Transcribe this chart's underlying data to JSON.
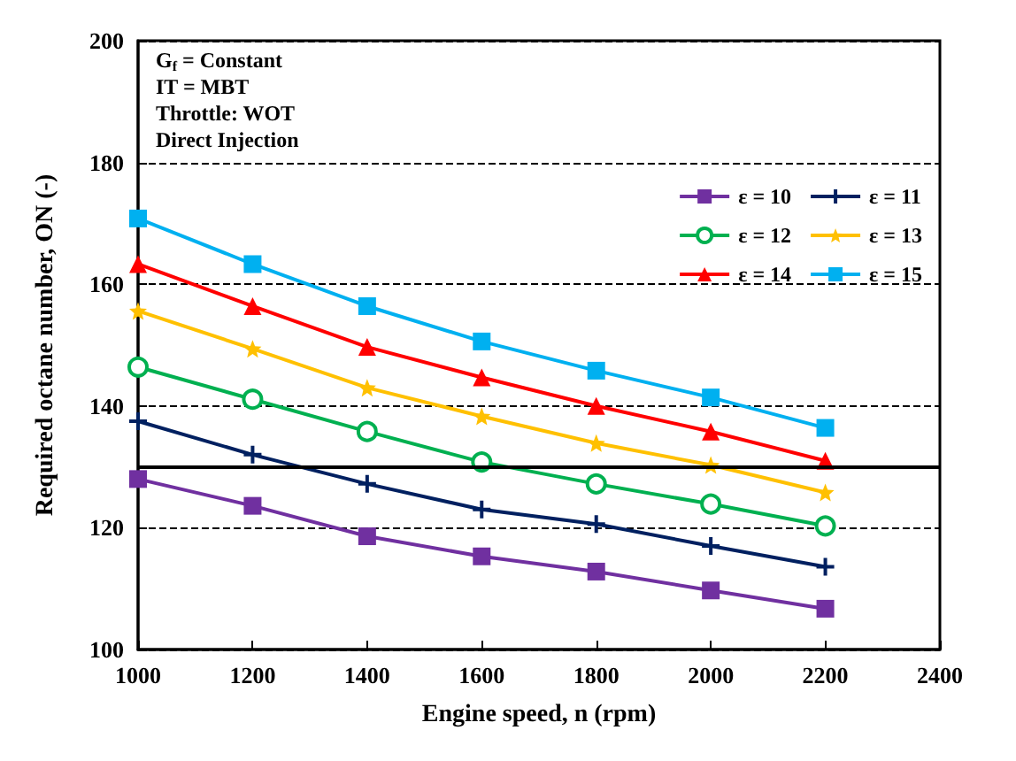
{
  "chart_data": {
    "type": "line",
    "xlabel": "Engine speed, n (rpm)",
    "ylabel": "Required octane number, ON (-)",
    "x": [
      1000,
      1200,
      1400,
      1600,
      1800,
      2000,
      2200
    ],
    "series": [
      {
        "name": "ε = 10",
        "color": "#7030a0",
        "marker": "square",
        "values": [
          128,
          123.6,
          118.6,
          115.3,
          112.8,
          109.7,
          106.7
        ]
      },
      {
        "name": "ε = 11",
        "color": "#002060",
        "marker": "cross",
        "values": [
          137.5,
          132,
          127.2,
          123,
          120.6,
          117,
          113.6
        ]
      },
      {
        "name": "ε = 12",
        "color": "#00b050",
        "marker": "circle",
        "values": [
          146.4,
          141.1,
          135.8,
          130.8,
          127.2,
          123.9,
          120.3
        ]
      },
      {
        "name": "ε = 13",
        "color": "#ffc000",
        "marker": "star",
        "values": [
          155.6,
          149.4,
          143,
          138.3,
          133.9,
          130.3,
          125.8
        ]
      },
      {
        "name": "ε = 14",
        "color": "#ff0000",
        "marker": "triangle",
        "values": [
          163.3,
          156.4,
          149.7,
          144.7,
          140,
          135.8,
          131
        ]
      },
      {
        "name": "ε = 15",
        "color": "#00b0f0",
        "marker": "square",
        "values": [
          170.8,
          163.3,
          156.4,
          150.6,
          145.8,
          141.4,
          136.4
        ]
      }
    ],
    "xlim": [
      1000,
      2400
    ],
    "xticks": [
      1000,
      1200,
      1400,
      1600,
      1800,
      2000,
      2200,
      2400
    ],
    "ylim": [
      100,
      200
    ],
    "yticks": [
      100,
      120,
      140,
      160,
      180,
      200
    ],
    "grid": "y",
    "legend": "top right",
    "line_style": "solid",
    "ref_lines": [
      {
        "axis": "y",
        "value": 130,
        "color": "#000000",
        "line_style": "solid"
      }
    ],
    "annotations": [
      "G$_{f}$ = Constant",
      "IT = MBT",
      "Throttle: WOT",
      "Direct Injection"
    ]
  }
}
